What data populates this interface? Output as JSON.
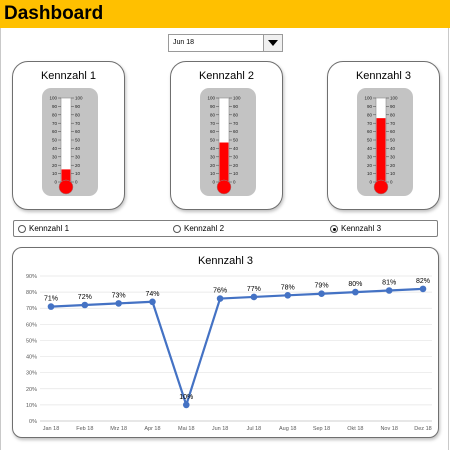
{
  "header": {
    "title": "Dashboard",
    "color": "#FFC000"
  },
  "month_select": {
    "value": "Jun 18"
  },
  "gauges": [
    {
      "title": "Kennzahl  1",
      "value_percent": 15
    },
    {
      "title": "Kennzahl  2",
      "value_percent": 47
    },
    {
      "title": "Kennzahl  3",
      "value_percent": 76
    }
  ],
  "gauge_scale": [
    "100",
    "90",
    "80",
    "70",
    "60",
    "50",
    "40",
    "30",
    "20",
    "10",
    "0"
  ],
  "gauge_color": "#FF0000",
  "radio_options": [
    {
      "label": "Kennzahl 1",
      "selected": false
    },
    {
      "label": "Kennzahl 2",
      "selected": false
    },
    {
      "label": "Kennzahl 3",
      "selected": true
    }
  ],
  "chart_data": {
    "type": "line",
    "title": "Kennzahl  3",
    "categories": [
      "Jan 18",
      "Feb 18",
      "Mrz 18",
      "Apr 18",
      "Mai 18",
      "Jun 18",
      "Jul 18",
      "Aug 18",
      "Sep 18",
      "Okt 18",
      "Nov 18",
      "Dez 18"
    ],
    "values": [
      71,
      72,
      73,
      74,
      10,
      76,
      77,
      78,
      79,
      80,
      81,
      82
    ],
    "data_labels": [
      "71%",
      "72%",
      "73%",
      "74%",
      "10%",
      "76%",
      "77%",
      "78%",
      "79%",
      "80%",
      "81%",
      "82%"
    ],
    "y_ticks": [
      "0%",
      "10%",
      "20%",
      "30%",
      "40%",
      "50%",
      "60%",
      "70%",
      "80%",
      "90%"
    ],
    "ylim": [
      0,
      90
    ],
    "grid": true,
    "line_color": "#4472C4"
  }
}
